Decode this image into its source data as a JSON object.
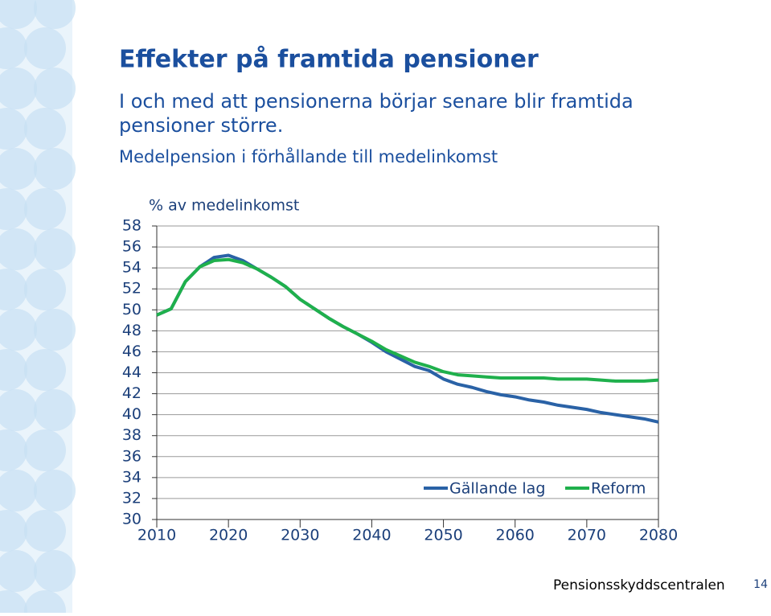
{
  "slide": {
    "title": "Effekter på framtida pensioner",
    "subtitle": [
      "I och med att pensionerna börjar senare blir framtida",
      "pensioner större."
    ],
    "caption": "Medelpension i förhållande till medelinkomst",
    "footer": "Pensionsskyddscentralen",
    "page_number": "14"
  },
  "chart_data": {
    "type": "line",
    "y_label": "% av medelinkomst",
    "x": [
      2010,
      2012,
      2014,
      2016,
      2018,
      2020,
      2022,
      2024,
      2026,
      2028,
      2030,
      2032,
      2034,
      2036,
      2038,
      2040,
      2042,
      2044,
      2046,
      2048,
      2050,
      2052,
      2054,
      2056,
      2058,
      2060,
      2062,
      2064,
      2066,
      2068,
      2070,
      2072,
      2074,
      2076,
      2078,
      2080
    ],
    "series": [
      {
        "name": "Gällande lag",
        "color": "#2a62a6",
        "values": [
          49.5,
          50.1,
          52.7,
          54.1,
          55.0,
          55.2,
          54.7,
          53.9,
          53.1,
          52.2,
          51.0,
          50.1,
          49.2,
          48.4,
          47.7,
          46.9,
          46.0,
          45.3,
          44.6,
          44.2,
          43.4,
          42.9,
          42.6,
          42.2,
          41.9,
          41.7,
          41.4,
          41.2,
          40.9,
          40.7,
          40.5,
          40.2,
          40.0,
          39.8,
          39.6,
          39.3
        ]
      },
      {
        "name": "Reform",
        "color": "#1fb04c",
        "values": [
          49.5,
          50.1,
          52.7,
          54.1,
          54.7,
          54.8,
          54.5,
          53.9,
          53.1,
          52.2,
          51.0,
          50.1,
          49.2,
          48.4,
          47.7,
          47.0,
          46.2,
          45.6,
          45.0,
          44.6,
          44.1,
          43.8,
          43.7,
          43.6,
          43.5,
          43.5,
          43.5,
          43.5,
          43.4,
          43.4,
          43.4,
          43.3,
          43.2,
          43.2,
          43.2,
          43.3
        ]
      }
    ],
    "xlim": [
      2010,
      2080
    ],
    "xticks": [
      2010,
      2020,
      2030,
      2040,
      2050,
      2060,
      2070,
      2080
    ],
    "ylim": [
      30,
      58
    ],
    "yticks": [
      30,
      32,
      34,
      36,
      38,
      40,
      42,
      44,
      46,
      48,
      50,
      52,
      54,
      56,
      58
    ],
    "grid": true,
    "legend": "lower right"
  }
}
